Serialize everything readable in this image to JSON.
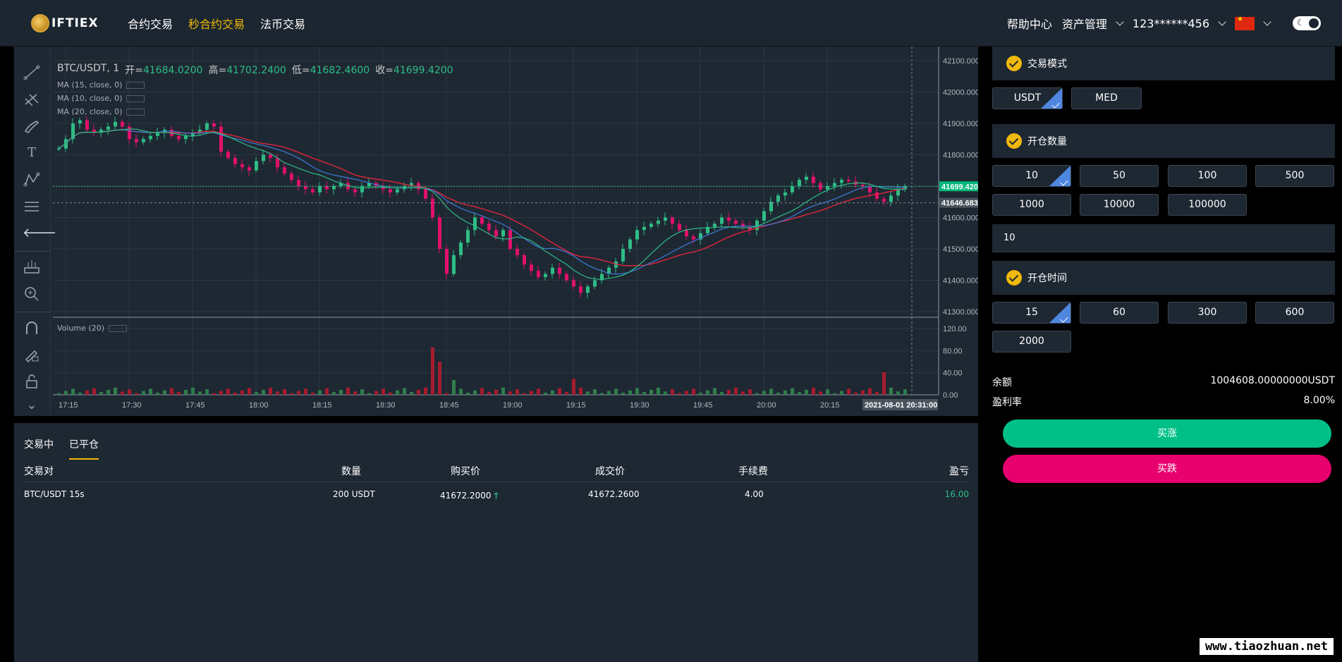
{
  "logo": {
    "text": "IFTIEX"
  },
  "nav": {
    "items": [
      "合约交易",
      "秒合约交易",
      "法币交易"
    ],
    "active": 1
  },
  "header": {
    "help": "帮助中心",
    "assets": "资产管理",
    "user": "123******456"
  },
  "chart": {
    "symbol": "BTC/USDT, 1",
    "open_label": "开=",
    "open": "41684.0200",
    "high_label": "高=",
    "high": "41702.2400",
    "low_label": "低=",
    "low": "41682.4600",
    "close_label": "收=",
    "close": "41699.4200",
    "ma1": "MA (15, close, 0)",
    "ma2": "MA (10, close, 0)",
    "ma3": "MA (20, close, 0)",
    "volume_label": "Volume (20)",
    "price_ticks": [
      "42100.0000",
      "42000.0000",
      "41900.0000",
      "41800.0000",
      "41600.0000",
      "41500.0000",
      "41400.0000",
      "41300.0000"
    ],
    "volume_ticks": [
      "120.00",
      "80.00",
      "40.00",
      "0.00"
    ],
    "time_ticks": [
      "17:15",
      "17:30",
      "17:45",
      "18:00",
      "18:15",
      "18:30",
      "18:45",
      "19:00",
      "19:15",
      "19:30",
      "19:45",
      "20:00",
      "20:15"
    ],
    "last_price": "41699.4200",
    "ref_price": "41646.6831",
    "current_time": "2021-08-01 20:31:00",
    "colors": {
      "up": "#2ebd85",
      "down": "#e0116b",
      "ma15": "#3d7bd9",
      "ma10": "#2ebd85",
      "ma20": "#e0263b"
    }
  },
  "orders": {
    "tabs": [
      "交易中",
      "已平仓"
    ],
    "headers": {
      "pair": "交易对",
      "qty": "数量",
      "buy": "购买价",
      "deal": "成交价",
      "fee": "手续费",
      "pnl": "盈亏"
    },
    "rows": [
      {
        "pair": "BTC/USDT 15s",
        "qty": "200 USDT",
        "buy": "41672.2000",
        "deal": "41672.2600",
        "fee": "4.00",
        "pnl": "16.00"
      }
    ]
  },
  "panel": {
    "mode_title": "交易模式",
    "modes": [
      "USDT",
      "MED"
    ],
    "qty_title": "开仓数量",
    "qtys": [
      "10",
      "50",
      "100",
      "500",
      "1000",
      "10000",
      "100000"
    ],
    "qty_value": "10",
    "time_title": "开仓时间",
    "times": [
      "15",
      "60",
      "300",
      "600",
      "2000"
    ],
    "balance_label": "余额",
    "balance": "1004608.00000000USDT",
    "rate_label": "盈利率",
    "rate": "8.00%",
    "buy_up": "买涨",
    "buy_down": "买跌"
  },
  "watermark": "www.tiaozhuan.net"
}
